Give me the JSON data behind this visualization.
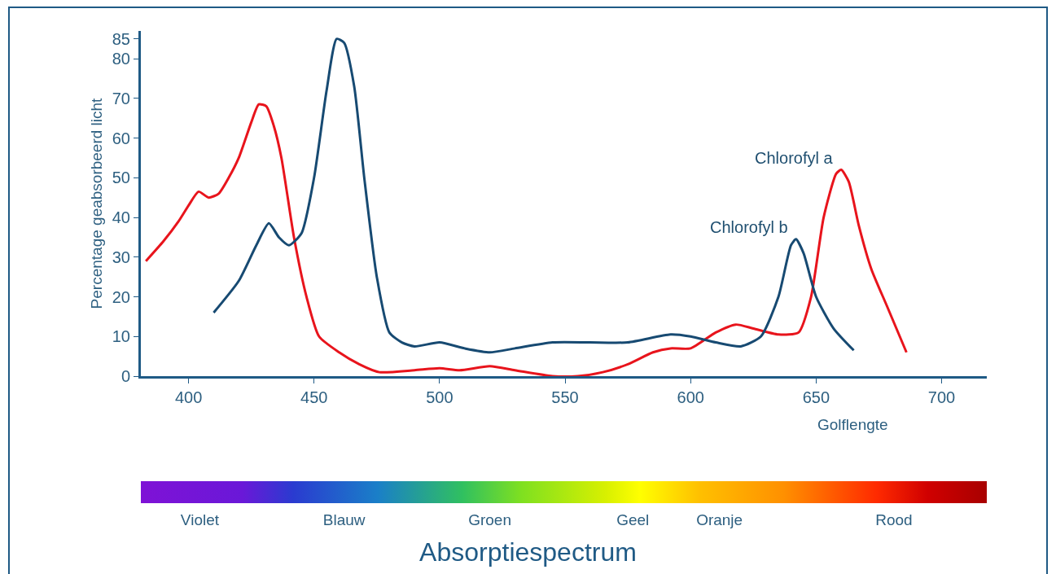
{
  "chart_data": {
    "type": "line",
    "title": "Absorptiespectrum",
    "xlabel": "Golflengte",
    "ylabel": "Percentage geabsorbeerd licht",
    "annotations": [
      "Violet",
      "Blauw",
      "Groen",
      "Geel",
      "Oranje",
      "Rood"
    ],
    "xlim": [
      381,
      718
    ],
    "xticks": [
      400,
      450,
      500,
      550,
      600,
      650,
      700
    ],
    "ylim": [
      0,
      87
    ],
    "yticks": [
      0,
      10,
      20,
      30,
      40,
      50,
      60,
      70,
      80,
      85
    ],
    "grid": false,
    "legend": false,
    "marker": "none",
    "line_style": "solid",
    "series": [
      {
        "name": "Chlorofyl a",
        "color": "#e8141c",
        "x": [
          383,
          390,
          396,
          400,
          404,
          408,
          412,
          416,
          420,
          425,
          428,
          431,
          434,
          437,
          442,
          447,
          452,
          460,
          468,
          476,
          490,
          500,
          508,
          520,
          530,
          545,
          555,
          565,
          575,
          585,
          592,
          600,
          610,
          618,
          625,
          635,
          643,
          648,
          653,
          658,
          660,
          663,
          667,
          672,
          678,
          686
        ],
        "values": [
          29,
          34,
          39,
          43,
          46.5,
          45,
          46,
          50,
          55,
          64,
          68.5,
          68,
          63,
          55,
          35,
          20,
          10,
          6,
          3,
          1,
          1.5,
          2,
          1.5,
          2.5,
          1.5,
          0,
          0,
          1,
          3,
          6,
          7,
          7,
          11,
          13,
          12,
          10.5,
          11,
          20,
          40,
          51,
          52,
          49,
          38,
          27,
          18,
          6
        ]
      },
      {
        "name": "Chlorofyl b",
        "color": "#174a72",
        "x": [
          410,
          420,
          427,
          432,
          436,
          440,
          445,
          450,
          455,
          459,
          462,
          466,
          470,
          475,
          480,
          485,
          490,
          500,
          510,
          520,
          530,
          545,
          560,
          575,
          592,
          600,
          610,
          620,
          628,
          635,
          640,
          642,
          645,
          650,
          657,
          665
        ],
        "values": [
          16,
          24,
          33,
          38.5,
          35,
          33,
          36,
          50,
          72,
          85,
          84,
          73,
          50,
          25,
          11,
          8.5,
          7.5,
          8.5,
          7,
          6,
          7,
          8.5,
          8.5,
          8.5,
          10.5,
          10,
          8.5,
          7.5,
          10,
          20,
          33,
          34.5,
          31,
          20,
          12,
          6.5
        ]
      }
    ]
  }
}
